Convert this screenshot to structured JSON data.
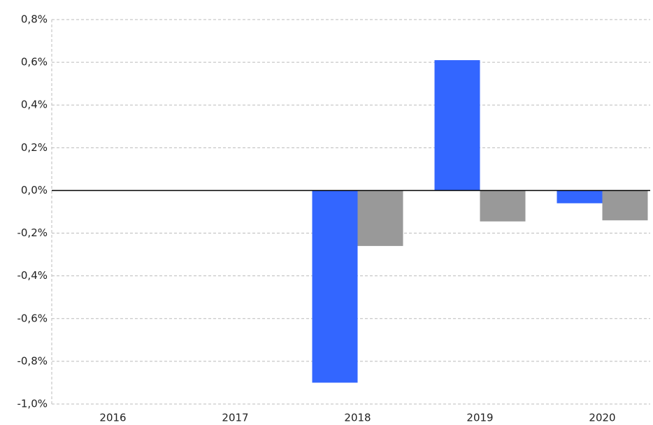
{
  "chart_data": {
    "type": "bar",
    "categories": [
      "2016",
      "2017",
      "2018",
      "2019",
      "2020"
    ],
    "series": [
      {
        "color": "#3366ff",
        "values": [
          null,
          null,
          -0.9,
          0.61,
          -0.06
        ]
      },
      {
        "color": "#999999",
        "values": [
          null,
          null,
          -0.26,
          -0.145,
          -0.14
        ]
      }
    ],
    "ylim": [
      -1.0,
      0.8
    ],
    "yticks": [
      {
        "value": -1.0,
        "label": "-1,0%"
      },
      {
        "value": -0.8,
        "label": "-0,8%"
      },
      {
        "value": -0.6,
        "label": "-0,6%"
      },
      {
        "value": -0.4,
        "label": "-0,4%"
      },
      {
        "value": -0.2,
        "label": "-0,2%"
      },
      {
        "value": 0,
        "label": "0,0%"
      },
      {
        "value": 0.2,
        "label": "0,2%"
      },
      {
        "value": 0.4,
        "label": "0,4%"
      },
      {
        "value": 0.6,
        "label": "0,6%"
      },
      {
        "value": 0.8,
        "label": "0,8%"
      }
    ],
    "grid": true
  }
}
